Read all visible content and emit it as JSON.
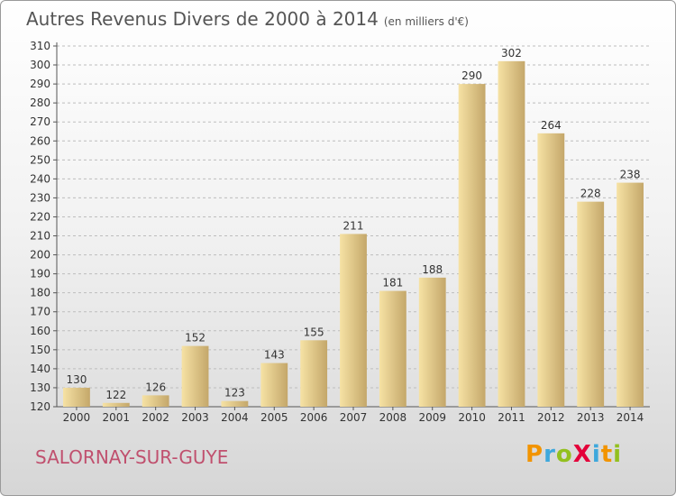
{
  "header": {
    "title": "Autres Revenus Divers de 2000 à 2014",
    "subtitle": "(en milliers d'€)"
  },
  "footer": {
    "commune": "SALORNAY-SUR-GUYE",
    "logo": {
      "text": "ProXiti",
      "letters": [
        {
          "ch": "P",
          "color": "#f29400"
        },
        {
          "ch": "r",
          "color": "#3ea8dc"
        },
        {
          "ch": "o",
          "color": "#93c01f"
        },
        {
          "ch": "X",
          "color": "#e4003a"
        },
        {
          "ch": "i",
          "color": "#3ea8dc"
        },
        {
          "ch": "t",
          "color": "#f29400"
        },
        {
          "ch": "i",
          "color": "#93c01f"
        }
      ]
    }
  },
  "chart_data": {
    "type": "bar",
    "title": "Autres Revenus Divers de 2000 à 2014",
    "subtitle": "(en milliers d'€)",
    "categories": [
      "2000",
      "2001",
      "2002",
      "2003",
      "2004",
      "2005",
      "2006",
      "2007",
      "2008",
      "2009",
      "2010",
      "2011",
      "2012",
      "2013",
      "2014"
    ],
    "values": [
      130,
      122,
      126,
      152,
      123,
      143,
      155,
      211,
      181,
      188,
      290,
      302,
      264,
      228,
      238
    ],
    "ylim": [
      120,
      310
    ],
    "ytick_step": 10,
    "grid": "horizontal dashed",
    "bar_color_light": "#f6e2a4",
    "bar_color_dark": "#c4a76a"
  }
}
